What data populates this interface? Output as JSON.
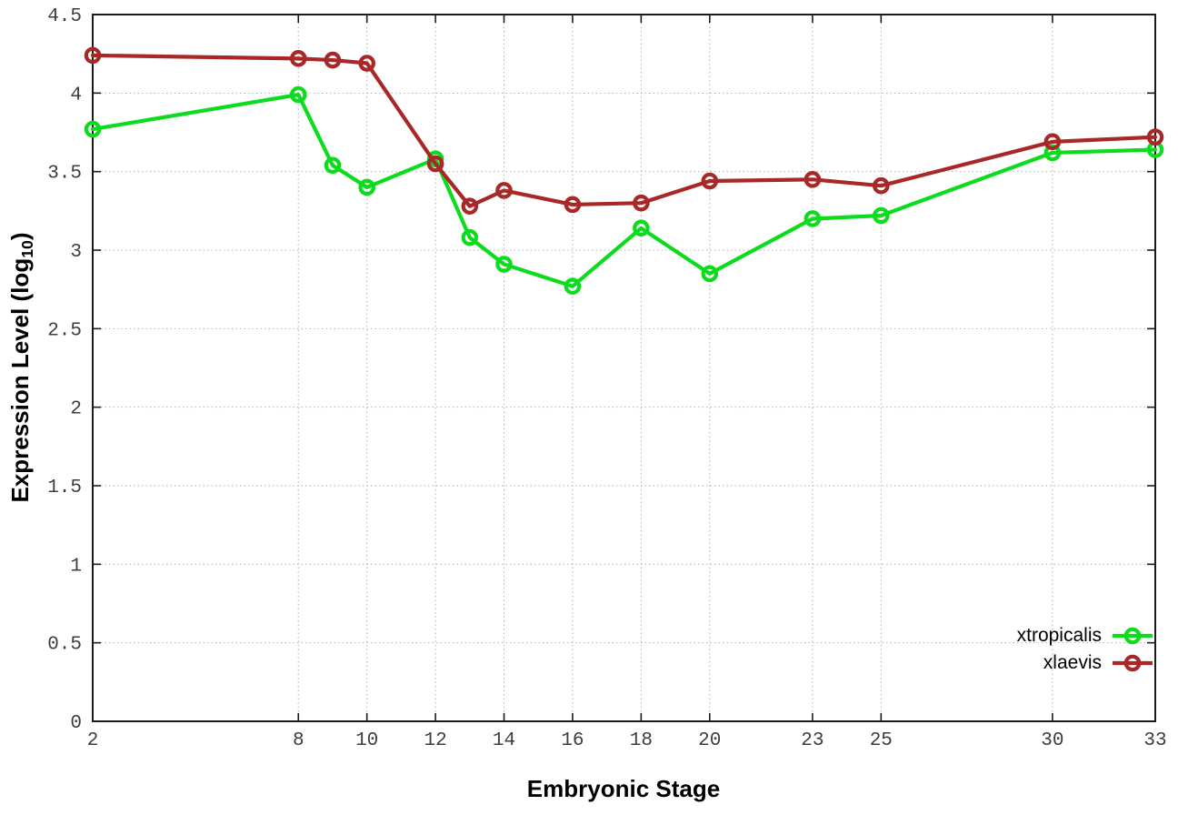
{
  "chart_data": {
    "type": "line",
    "xlabel": "Embryonic Stage",
    "ylabel": "Expression Level (log10)",
    "ylabel_parts": {
      "main": "Expression Level (log",
      "sub": "10",
      "end": ")"
    },
    "xlim": [
      2,
      33
    ],
    "ylim": [
      0,
      4.5
    ],
    "x_ticks": [
      "2",
      "8",
      "10",
      "12",
      "14",
      "16",
      "18",
      "20",
      "23",
      "25",
      "30",
      "33"
    ],
    "y_ticks": [
      "0",
      "0.5",
      "1",
      "1.5",
      "2",
      "2.5",
      "3",
      "3.5",
      "4",
      "4.5"
    ],
    "grid": true,
    "legend_position": "bottom-right",
    "marker": "open-circle",
    "x": [
      2,
      8,
      9,
      10,
      12,
      13,
      14,
      16,
      18,
      20,
      23,
      25,
      30,
      33
    ],
    "series": [
      {
        "name": "xtropicalis",
        "color": "#0ddc1e",
        "values": [
          3.77,
          3.99,
          3.54,
          3.4,
          3.58,
          3.08,
          2.91,
          2.77,
          3.14,
          2.85,
          3.2,
          3.22,
          3.62,
          3.64
        ]
      },
      {
        "name": "xlaevis",
        "color": "#a82828",
        "values": [
          4.24,
          4.22,
          4.21,
          4.19,
          3.55,
          3.28,
          3.38,
          3.29,
          3.3,
          3.44,
          3.45,
          3.41,
          3.69,
          3.72
        ]
      }
    ],
    "colors": {
      "background": "#ffffff",
      "grid": "#b3b3b3",
      "axis": "#1c1c1c"
    }
  }
}
